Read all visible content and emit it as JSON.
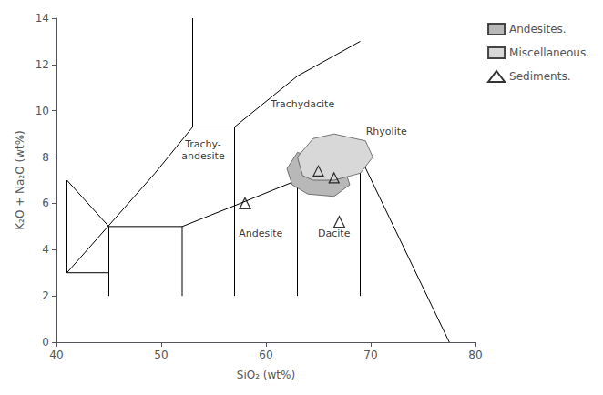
{
  "chart_data": {
    "type": "scatter",
    "xlabel": "SiO₂ (wt%)",
    "ylabel": "K₂O + Na₂O (wt%)",
    "xlim": [
      40,
      80
    ],
    "ylim": [
      0,
      14
    ],
    "xticks": [
      40,
      50,
      60,
      70,
      80
    ],
    "yticks": [
      0,
      2,
      4,
      6,
      8,
      10,
      12,
      14
    ],
    "grid": false,
    "legend": "right",
    "boundaries": {
      "color": "#000000",
      "segments": [
        [
          [
            41,
            3
          ],
          [
            41,
            7
          ]
        ],
        [
          [
            41,
            3
          ],
          [
            45,
            3
          ]
        ],
        [
          [
            45,
            2
          ],
          [
            45,
            5
          ]
        ],
        [
          [
            45,
            5
          ],
          [
            52,
            5
          ]
        ],
        [
          [
            52,
            2
          ],
          [
            52,
            5
          ]
        ],
        [
          [
            52,
            5
          ],
          [
            57,
            5.9
          ]
        ],
        [
          [
            57,
            2
          ],
          [
            57,
            5.9
          ]
        ],
        [
          [
            63,
            2
          ],
          [
            63,
            7
          ]
        ],
        [
          [
            69,
            2
          ],
          [
            69,
            8
          ]
        ],
        [
          [
            69,
            8
          ],
          [
            77.5,
            0
          ]
        ],
        [
          [
            41,
            7
          ],
          [
            45,
            5
          ]
        ],
        [
          [
            41,
            3
          ],
          [
            49.4,
            7.3
          ]
        ],
        [
          [
            49.4,
            7.3
          ],
          [
            53,
            9.3
          ]
        ],
        [
          [
            53,
            9.3
          ],
          [
            53,
            14
          ]
        ],
        [
          [
            53,
            9.3
          ],
          [
            57,
            9.3
          ]
        ],
        [
          [
            57,
            9.3
          ],
          [
            63,
            11.5
          ]
        ],
        [
          [
            63,
            11.5
          ],
          [
            69,
            13
          ]
        ],
        [
          [
            57,
            5.9
          ],
          [
            63,
            7
          ]
        ],
        [
          [
            57,
            5.9
          ],
          [
            57,
            9.3
          ]
        ],
        [
          [
            63,
            7
          ],
          [
            69,
            8
          ]
        ]
      ]
    },
    "series": [
      {
        "name": "Andesites.",
        "type": "polygon",
        "color": "#b8b8b8",
        "points": [
          [
            62.5,
            6.8
          ],
          [
            62.0,
            7.5
          ],
          [
            63.0,
            8.2
          ],
          [
            65.0,
            8.0
          ],
          [
            67.5,
            7.5
          ],
          [
            68.0,
            6.8
          ],
          [
            66.5,
            6.3
          ],
          [
            64.0,
            6.4
          ],
          [
            62.5,
            6.8
          ]
        ]
      },
      {
        "name": "Miscellaneous.",
        "type": "polygon",
        "color": "#d8d8d8",
        "points": [
          [
            63.5,
            7.2
          ],
          [
            63.0,
            8.0
          ],
          [
            64.5,
            8.8
          ],
          [
            66.5,
            9.0
          ],
          [
            69.5,
            8.7
          ],
          [
            70.2,
            8.0
          ],
          [
            69.0,
            7.3
          ],
          [
            66.5,
            7.0
          ],
          [
            64.5,
            7.0
          ],
          [
            63.5,
            7.2
          ]
        ]
      },
      {
        "name": "Sediments.",
        "type": "scatter",
        "marker": "triangle",
        "color": "#000000",
        "x": [
          58.0,
          67.0
        ],
        "y": [
          6.0,
          5.2
        ]
      }
    ],
    "cloud_points": {
      "marker": "triangle",
      "color": "#000000",
      "x": [
        65.0,
        66.5
      ],
      "y": [
        7.4,
        7.1
      ]
    },
    "annotations": [
      {
        "text": "Trachydacite",
        "x": 63.5,
        "y": 10.3
      },
      {
        "text": "Trachy-\nandesite",
        "x": 54.0,
        "y": 8.3
      },
      {
        "text": "Andesite",
        "x": 59.5,
        "y": 4.7
      },
      {
        "text": "Dacite",
        "x": 66.5,
        "y": 4.7
      },
      {
        "text": "Rhyolite",
        "x": 71.5,
        "y": 9.1
      }
    ]
  }
}
